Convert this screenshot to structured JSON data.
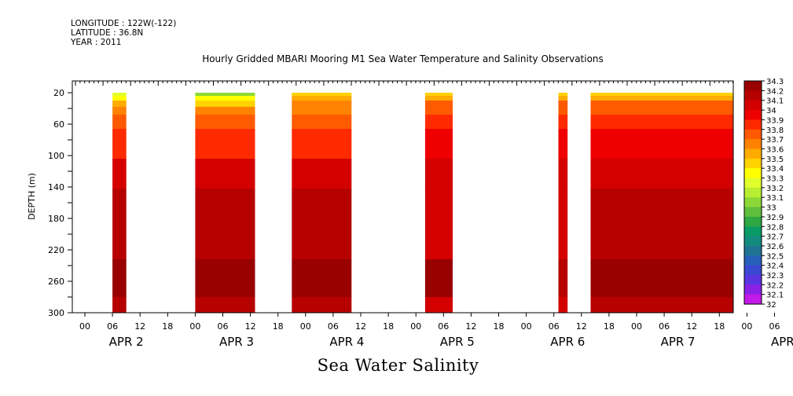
{
  "header": {
    "longitude": "LONGITUDE : 122W(-122)",
    "latitude": "LATITUDE : 36.8N",
    "year": "YEAR : 2011"
  },
  "chart_data": {
    "type": "heatmap",
    "title": "Hourly Gridded MBARI Mooring M1 Sea Water Temperature and Salinity Observations",
    "xlabel": "Sea Water Salinity",
    "ylabel": "DEPTH (m)",
    "x_unit": "hours since APR 1 2011 18:00",
    "x_range": [
      0,
      165
    ],
    "y_range": [
      300,
      5
    ],
    "y_ticks": [
      20,
      60,
      100,
      140,
      180,
      220,
      260,
      300
    ],
    "x_hour_ticks": [
      "00",
      "06",
      "12",
      "18",
      "00",
      "06",
      "12",
      "18",
      "00",
      "06",
      "12",
      "18",
      "00",
      "06",
      "12",
      "18",
      "00",
      "06",
      "12",
      "18",
      "00",
      "06",
      "12",
      "18",
      "00",
      "06",
      "12",
      "18"
    ],
    "x_day_labels": [
      "APR  2",
      "APR  3",
      "APR  4",
      "APR  5",
      "APR  6",
      "APR  7",
      "APR  8"
    ],
    "colorbar": {
      "levels": [
        34.3,
        34.2,
        34.1,
        34,
        33.9,
        33.8,
        33.7,
        33.6,
        33.5,
        33.4,
        33.3,
        33.2,
        33.1,
        33,
        32.9,
        32.8,
        32.7,
        32.6,
        32.5,
        32.4,
        32.3,
        32.2,
        32.1,
        32
      ],
      "colors": [
        "#990000",
        "#b70000",
        "#d40000",
        "#ee0000",
        "#ff2a00",
        "#ff5a00",
        "#ff8200",
        "#ffab00",
        "#ffd200",
        "#ffff00",
        "#e0ff2a",
        "#b8ee30",
        "#8cd838",
        "#5fbe3c",
        "#2fa743",
        "#0a9a66",
        "#158b80",
        "#1f7493",
        "#2660b8",
        "#3b49d2",
        "#5a34e0",
        "#8b21e6",
        "#c21ae8",
        "#e51ae5"
      ]
    },
    "data_blocks": [
      {
        "start": 12,
        "end": 15,
        "surface": "variable",
        "mid": 33.9,
        "deep": 34.2,
        "bottom": 34.3
      },
      {
        "start": 30,
        "end": 43,
        "surface": 33.1,
        "mid": 33.9,
        "deep": 34.2,
        "bottom": 34.3
      },
      {
        "start": 51,
        "end": 64,
        "surface": 33.5,
        "mid": 33.9,
        "deep": 34.2,
        "bottom": 34.3
      },
      {
        "start": 80,
        "end": 86,
        "surface": 33.5,
        "mid": 34.0,
        "deep": 34.1,
        "bottom": 34.3
      },
      {
        "start": 109,
        "end": 111,
        "surface": 33.5,
        "mid": 34.0,
        "deep": 34.1,
        "bottom": 34.2
      },
      {
        "start": 116,
        "end": 153,
        "surface": 33.5,
        "mid": 34.0,
        "deep": 34.2,
        "bottom": 34.3
      },
      {
        "start": 157,
        "end": 160,
        "surface": 33.6,
        "mid": 34.0,
        "deep": 34.2,
        "bottom": 34.3
      },
      {
        "start": 164,
        "end": 175,
        "surface": 33.5,
        "mid": 34.0,
        "deep": 34.2,
        "bottom": 34.3
      }
    ]
  }
}
